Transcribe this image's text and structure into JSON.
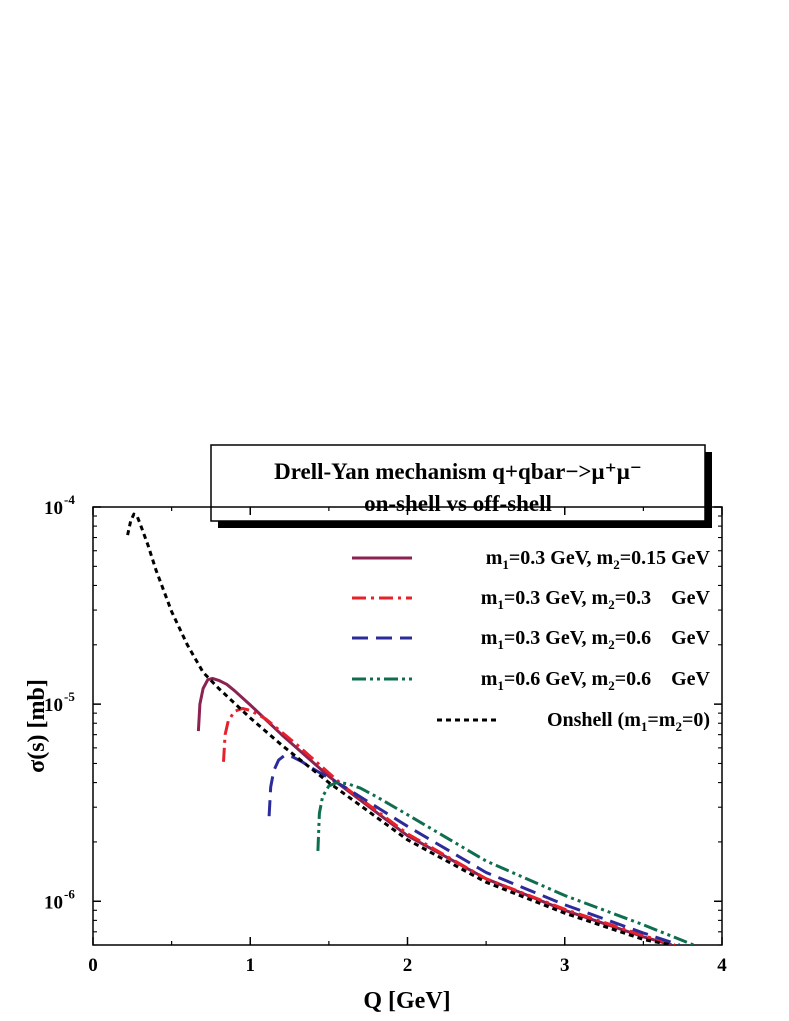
{
  "chart_data": {
    "type": "line",
    "title_lines": [
      "Drell-Yan mechanism q+qbar−>μ⁺μ⁻",
      "on-shell vs off-shell"
    ],
    "xlabel": "Q [GeV]",
    "ylabel": "σ(s) [mb]",
    "xlim": [
      0,
      4
    ],
    "ylim": [
      6e-07,
      0.0001
    ],
    "yscale": "log",
    "grid": false,
    "legend_position": "top-right",
    "x_ticks": [
      {
        "value": 0,
        "label": "0"
      },
      {
        "value": 1,
        "label": "1"
      },
      {
        "value": 2,
        "label": "2"
      },
      {
        "value": 3,
        "label": "3"
      },
      {
        "value": 4,
        "label": "4"
      }
    ],
    "y_ticks": [
      {
        "value": 1e-06,
        "base": "10",
        "exp": "-6"
      },
      {
        "value": 1e-05,
        "base": "10",
        "exp": "-5"
      },
      {
        "value": 0.0001,
        "base": "10",
        "exp": "-4"
      }
    ],
    "series": [
      {
        "name": "m1=0.3 GeV, m2=0.15 GeV",
        "label_parts": [
          {
            "t": "m"
          },
          {
            "s": "1"
          },
          {
            "t": "=0.3 GeV, m"
          },
          {
            "s": "2"
          },
          {
            "t": "=0.15 GeV"
          }
        ],
        "color": "#8b2252",
        "dash": "",
        "x": [
          0.67,
          0.68,
          0.7,
          0.73,
          0.76,
          0.8,
          0.85,
          0.9,
          1.0,
          1.2,
          1.5,
          2.0,
          2.5,
          3.0,
          3.5,
          3.68
        ],
        "y": [
          7.3e-06,
          1e-05,
          1.2e-05,
          1.33e-05,
          1.35e-05,
          1.32e-05,
          1.26e-05,
          1.17e-05,
          9.9e-06,
          7e-06,
          4.3e-06,
          2.15e-06,
          1.3e-06,
          9e-07,
          6.6e-07,
          6e-07
        ]
      },
      {
        "name": "m1=0.3 GeV, m2=0.3 GeV",
        "label_parts": [
          {
            "t": "m"
          },
          {
            "s": "1"
          },
          {
            "t": "=0.3 GeV, m"
          },
          {
            "s": "2"
          },
          {
            "t": "=0.3  GeV"
          }
        ],
        "color": "#e8202a",
        "dash": "14,5,3,5",
        "x": [
          0.83,
          0.84,
          0.86,
          0.9,
          0.95,
          1.0,
          1.1,
          1.3,
          1.6,
          2.0,
          2.5,
          3.0,
          3.5,
          3.7
        ],
        "y": [
          5.1e-06,
          7e-06,
          8.2e-06,
          9.2e-06,
          9.5e-06,
          9.3e-06,
          8.4e-06,
          6.2e-06,
          3.8e-06,
          2.2e-06,
          1.3e-06,
          9.1e-07,
          6.7e-07,
          6e-07
        ]
      },
      {
        "name": "m1=0.3 GeV, m2=0.6 GeV",
        "label_parts": [
          {
            "t": "m"
          },
          {
            "s": "1"
          },
          {
            "t": "=0.3 GeV, m"
          },
          {
            "s": "2"
          },
          {
            "t": "=0.6  GeV"
          }
        ],
        "color": "#2b2b9a",
        "dash": "16,8",
        "x": [
          1.12,
          1.13,
          1.15,
          1.18,
          1.22,
          1.27,
          1.33,
          1.4,
          1.6,
          2.0,
          2.5,
          3.0,
          3.5,
          3.73
        ],
        "y": [
          2.7e-06,
          3.8e-06,
          4.6e-06,
          5.2e-06,
          5.5e-06,
          5.4e-06,
          5.1e-06,
          4.7e-06,
          3.8e-06,
          2.4e-06,
          1.4e-06,
          9.6e-07,
          6.9e-07,
          6e-07
        ]
      },
      {
        "name": "m1=0.6 GeV, m2=0.6 GeV",
        "label_parts": [
          {
            "t": "m"
          },
          {
            "s": "1"
          },
          {
            "t": "=0.6 GeV, m"
          },
          {
            "s": "2"
          },
          {
            "t": "=0.6  GeV"
          }
        ],
        "color": "#0f6e4f",
        "dash": "14,4,3,4,3,4",
        "x": [
          1.43,
          1.44,
          1.46,
          1.5,
          1.55,
          1.62,
          1.7,
          1.8,
          2.0,
          2.5,
          3.0,
          3.5,
          3.82
        ],
        "y": [
          1.8e-06,
          2.8e-06,
          3.4e-06,
          3.85e-06,
          4e-06,
          3.95e-06,
          3.75e-06,
          3.4e-06,
          2.75e-06,
          1.6e-06,
          1.07e-06,
          7.6e-07,
          6e-07
        ]
      },
      {
        "name": "Onshell (m1=m2=0)",
        "label_parts": [
          {
            "t": "Onshell (m"
          },
          {
            "s": "1"
          },
          {
            "t": "=m"
          },
          {
            "s": "2"
          },
          {
            "t": "=0)"
          }
        ],
        "color": "#000000",
        "dash": "5,4",
        "x": [
          0.22,
          0.24,
          0.26,
          0.28,
          0.3,
          0.35,
          0.4,
          0.5,
          0.6,
          0.7,
          0.8,
          1.0,
          1.2,
          1.5,
          2.0,
          2.5,
          3.0,
          3.5,
          3.68
        ],
        "y": [
          7.2e-05,
          8.5e-05,
          9.2e-05,
          9e-05,
          8.2e-05,
          6.4e-05,
          4.8e-05,
          2.95e-05,
          2e-05,
          1.45e-05,
          1.2e-05,
          8.5e-06,
          6.2e-06,
          4e-06,
          2.05e-06,
          1.25e-06,
          8.7e-07,
          6.4e-07,
          6e-07
        ]
      }
    ]
  }
}
